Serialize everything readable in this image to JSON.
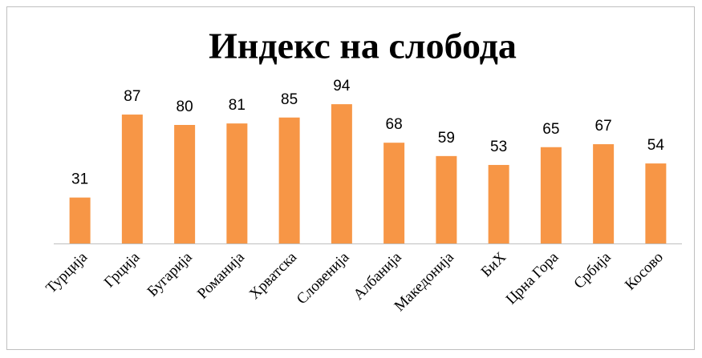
{
  "chart_data": {
    "type": "bar",
    "title": "Индекс на слобода",
    "categories": [
      "Турција",
      "Грција",
      "Бугарија",
      "Романија",
      "Хрватска",
      "Словенија",
      "Албанија",
      "Македонија",
      "БиХ",
      "Црна Гора",
      "Србија",
      "Косово"
    ],
    "values": [
      31,
      87,
      80,
      81,
      85,
      94,
      68,
      59,
      53,
      65,
      67,
      54
    ],
    "color": "#f79646"
  }
}
